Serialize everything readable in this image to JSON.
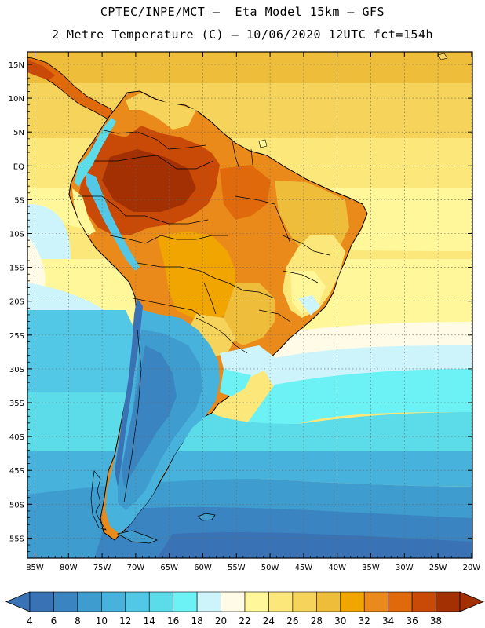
{
  "header": {
    "line1": "CPTEC/INPE/MCT –  Eta Model 15km – GFS",
    "line2": "2 Metre Temperature (C) – 10/06/2020 12UTC fct=154h"
  },
  "axes": {
    "lat_labels": [
      "15N",
      "10N",
      "5N",
      "EQ",
      "5S",
      "10S",
      "15S",
      "20S",
      "25S",
      "30S",
      "35S",
      "40S",
      "45S",
      "50S",
      "55S"
    ],
    "lon_labels": [
      "85W",
      "80W",
      "75W",
      "70W",
      "65W",
      "60W",
      "55W",
      "50W",
      "45W",
      "40W",
      "35W",
      "30W",
      "25W",
      "20W"
    ]
  },
  "colorbar": {
    "labels": [
      "4",
      "6",
      "8",
      "10",
      "12",
      "14",
      "16",
      "18",
      "20",
      "22",
      "24",
      "26",
      "28",
      "30",
      "32",
      "34",
      "36",
      "38"
    ],
    "colors": [
      "#3a73b5",
      "#3a84c2",
      "#3f9ccf",
      "#47b2dc",
      "#52c8e6",
      "#5cdbe9",
      "#6cf2f5",
      "#cdf4fb",
      "#fffbe6",
      "#fff79a",
      "#fbe77a",
      "#f6d45b",
      "#eebd3a",
      "#f0a500",
      "#ea8a1a",
      "#e0690c",
      "#c94a07",
      "#a33003"
    ]
  }
}
